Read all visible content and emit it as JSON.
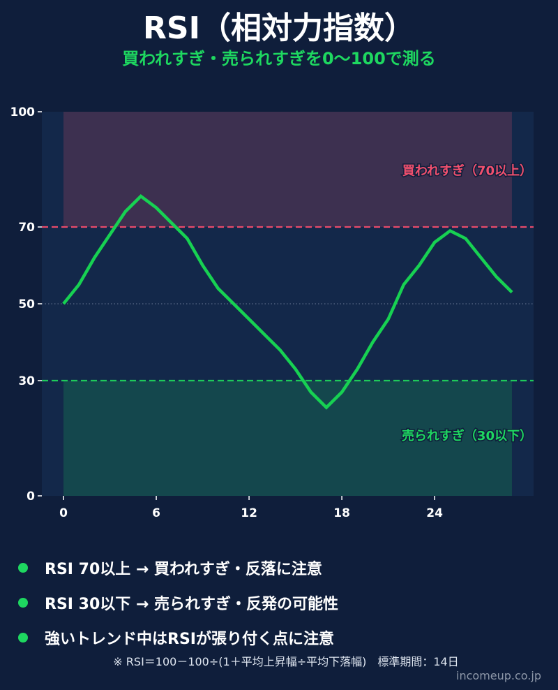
{
  "header": {
    "title": "RSI（相対力指数）",
    "subtitle": "買われすぎ・売られすぎを0〜100で測る"
  },
  "chart_data": {
    "type": "line",
    "x": [
      0,
      1,
      2,
      3,
      4,
      5,
      6,
      7,
      8,
      9,
      10,
      11,
      12,
      13,
      14,
      15,
      16,
      17,
      18,
      19,
      20,
      21,
      22,
      23,
      24,
      25,
      26,
      27,
      28,
      29
    ],
    "series": [
      {
        "values": [
          50,
          55,
          62,
          68,
          74,
          78,
          75,
          71,
          67,
          60,
          54,
          50,
          46,
          42,
          38,
          33,
          27,
          23,
          27,
          33,
          40,
          46,
          55,
          60,
          66,
          69,
          67,
          62,
          57,
          53
        ]
      }
    ],
    "xticks": [
      0,
      6,
      12,
      18,
      24
    ],
    "yticks": [
      0,
      30,
      50,
      70,
      100
    ],
    "xlim": [
      -1.4,
      30.4
    ],
    "ylim": [
      0,
      100
    ],
    "reference_lines": [
      {
        "y": 70,
        "color": "#e84a6a",
        "style": "dashed"
      },
      {
        "y": 50,
        "color": "#6b7a96",
        "style": "dotted"
      },
      {
        "y": 30,
        "color": "#1ec95a",
        "style": "dashed"
      }
    ],
    "zones": [
      {
        "from": 70,
        "to": 100,
        "color": "#3d3050",
        "label": "買われすぎ（70以上）",
        "label_color": "#f2506e"
      },
      {
        "from": 0,
        "to": 30,
        "color": "#14474d",
        "label": "売られすぎ（30以下）",
        "label_color": "#1ed760"
      }
    ],
    "line_color": "#17d152",
    "grid": false
  },
  "bullets": [
    "RSI 70以上 → 買われすぎ・反落に注意",
    "RSI 30以下 → 売られすぎ・反発の可能性",
    "強いトレンド中はRSIが張り付く点に注意"
  ],
  "footnote": "※ RSI＝100－100÷(1＋平均上昇幅÷平均下落幅)　標準期間：14日",
  "credit": "incomeup.co.jp"
}
